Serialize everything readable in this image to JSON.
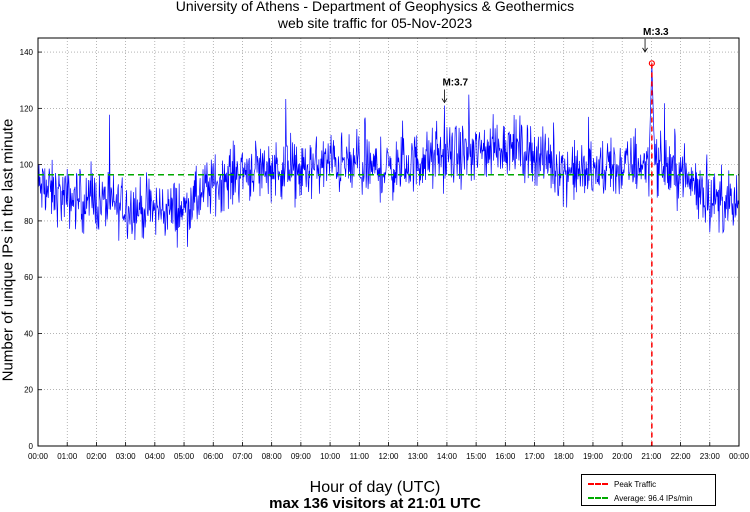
{
  "chart_data": {
    "type": "line",
    "title": [
      "University of Athens - Department of Geophysics & Geothermics",
      "web site traffic for 05-Nov-2023"
    ],
    "xlabel": "Hour of day (UTC)",
    "ylabel": "Number of unique IPs in the last minute",
    "footer": "max 136 visitors at 21:01 UTC",
    "xlim": [
      0,
      1440
    ],
    "ylim": [
      0,
      145
    ],
    "yticks": [
      0,
      20,
      40,
      60,
      80,
      100,
      120,
      140
    ],
    "xtick_labels": [
      "00:00",
      "01:00",
      "02:00",
      "03:00",
      "04:00",
      "05:00",
      "06:00",
      "07:00",
      "08:00",
      "09:00",
      "10:00",
      "11:00",
      "12:00",
      "13:00",
      "14:00",
      "15:00",
      "16:00",
      "17:00",
      "18:00",
      "19:00",
      "20:00",
      "21:00",
      "22:00",
      "23:00",
      "00:00"
    ],
    "grid": true,
    "series_color": "#0000ff",
    "trend": [
      [
        0,
        92
      ],
      [
        60,
        88
      ],
      [
        120,
        87
      ],
      [
        180,
        85
      ],
      [
        240,
        84
      ],
      [
        300,
        84
      ],
      [
        330,
        88
      ],
      [
        360,
        93
      ],
      [
        420,
        98
      ],
      [
        480,
        99
      ],
      [
        540,
        97
      ],
      [
        600,
        101
      ],
      [
        660,
        99
      ],
      [
        720,
        98
      ],
      [
        780,
        101
      ],
      [
        840,
        103
      ],
      [
        900,
        104
      ],
      [
        960,
        107
      ],
      [
        1020,
        104
      ],
      [
        1080,
        98
      ],
      [
        1140,
        97
      ],
      [
        1200,
        99
      ],
      [
        1260,
        101
      ],
      [
        1320,
        97
      ],
      [
        1380,
        88
      ],
      [
        1439,
        84
      ]
    ],
    "noise_amplitude": 8,
    "average": {
      "value": 96.4,
      "label": "Average: 96.4 IPs/min",
      "color": "#00aa00"
    },
    "peak": {
      "minute": 1261,
      "value": 136,
      "label": "Peak Traffic",
      "color": "#ff0000"
    },
    "annotations": [
      {
        "label": "M:3.7",
        "minute": 835,
        "value": 121
      },
      {
        "label": "M:3.3",
        "minute": 1247,
        "value": 139
      }
    ]
  }
}
